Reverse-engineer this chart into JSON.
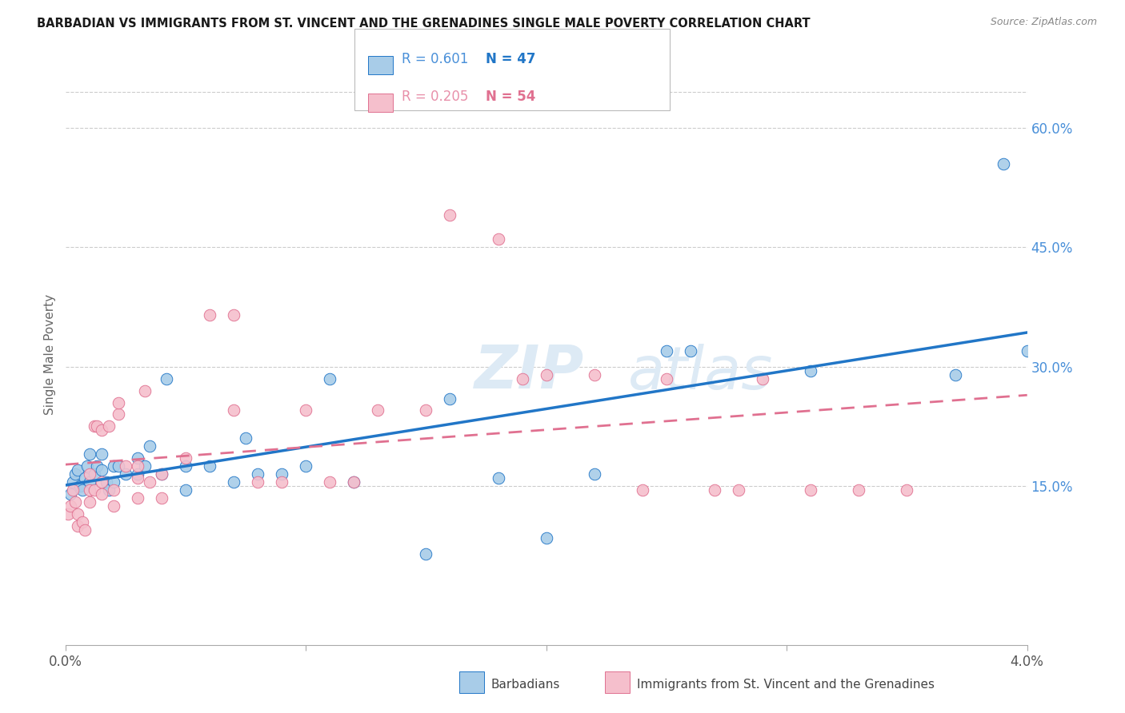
{
  "title": "BARBADIAN VS IMMIGRANTS FROM ST. VINCENT AND THE GRENADINES SINGLE MALE POVERTY CORRELATION CHART",
  "source": "Source: ZipAtlas.com",
  "ylabel": "Single Male Poverty",
  "right_yticks": [
    "60.0%",
    "45.0%",
    "30.0%",
    "15.0%"
  ],
  "right_ytick_vals": [
    0.6,
    0.45,
    0.3,
    0.15
  ],
  "xlim": [
    0.0,
    0.04
  ],
  "ylim": [
    -0.05,
    0.68
  ],
  "top_gridline": 0.645,
  "color_blue": "#a8cce8",
  "color_pink": "#f5bfcc",
  "color_blue_line": "#2176c7",
  "color_pink_line": "#e07090",
  "barbadians_x": [
    0.0002,
    0.0003,
    0.0004,
    0.0005,
    0.0006,
    0.0007,
    0.0008,
    0.0009,
    0.001,
    0.001,
    0.0012,
    0.0013,
    0.0015,
    0.0015,
    0.0017,
    0.0018,
    0.002,
    0.002,
    0.0022,
    0.0025,
    0.003,
    0.003,
    0.0033,
    0.0035,
    0.004,
    0.0042,
    0.005,
    0.005,
    0.006,
    0.007,
    0.0075,
    0.008,
    0.009,
    0.01,
    0.011,
    0.012,
    0.015,
    0.016,
    0.018,
    0.02,
    0.022,
    0.025,
    0.026,
    0.031,
    0.037,
    0.039,
    0.04
  ],
  "barbadians_y": [
    0.14,
    0.155,
    0.165,
    0.17,
    0.15,
    0.145,
    0.16,
    0.175,
    0.155,
    0.19,
    0.165,
    0.175,
    0.17,
    0.19,
    0.155,
    0.145,
    0.155,
    0.175,
    0.175,
    0.165,
    0.185,
    0.165,
    0.175,
    0.2,
    0.165,
    0.285,
    0.145,
    0.175,
    0.175,
    0.155,
    0.21,
    0.165,
    0.165,
    0.175,
    0.285,
    0.155,
    0.065,
    0.26,
    0.16,
    0.085,
    0.165,
    0.32,
    0.32,
    0.295,
    0.29,
    0.555,
    0.32
  ],
  "svincent_x": [
    0.0001,
    0.0002,
    0.0003,
    0.0004,
    0.0005,
    0.0005,
    0.0007,
    0.0008,
    0.001,
    0.001,
    0.001,
    0.0012,
    0.0012,
    0.0013,
    0.0015,
    0.0015,
    0.0015,
    0.0018,
    0.002,
    0.002,
    0.0022,
    0.0022,
    0.0025,
    0.003,
    0.003,
    0.003,
    0.0033,
    0.0035,
    0.004,
    0.004,
    0.005,
    0.006,
    0.007,
    0.007,
    0.008,
    0.009,
    0.01,
    0.011,
    0.012,
    0.013,
    0.015,
    0.016,
    0.018,
    0.019,
    0.02,
    0.022,
    0.024,
    0.025,
    0.027,
    0.028,
    0.029,
    0.031,
    0.033,
    0.035
  ],
  "svincent_y": [
    0.115,
    0.125,
    0.145,
    0.13,
    0.115,
    0.1,
    0.105,
    0.095,
    0.13,
    0.145,
    0.165,
    0.145,
    0.225,
    0.225,
    0.155,
    0.14,
    0.22,
    0.225,
    0.145,
    0.125,
    0.24,
    0.255,
    0.175,
    0.175,
    0.16,
    0.135,
    0.27,
    0.155,
    0.165,
    0.135,
    0.185,
    0.365,
    0.245,
    0.365,
    0.155,
    0.155,
    0.245,
    0.155,
    0.155,
    0.245,
    0.245,
    0.49,
    0.46,
    0.285,
    0.29,
    0.29,
    0.145,
    0.285,
    0.145,
    0.145,
    0.285,
    0.145,
    0.145,
    0.145
  ]
}
